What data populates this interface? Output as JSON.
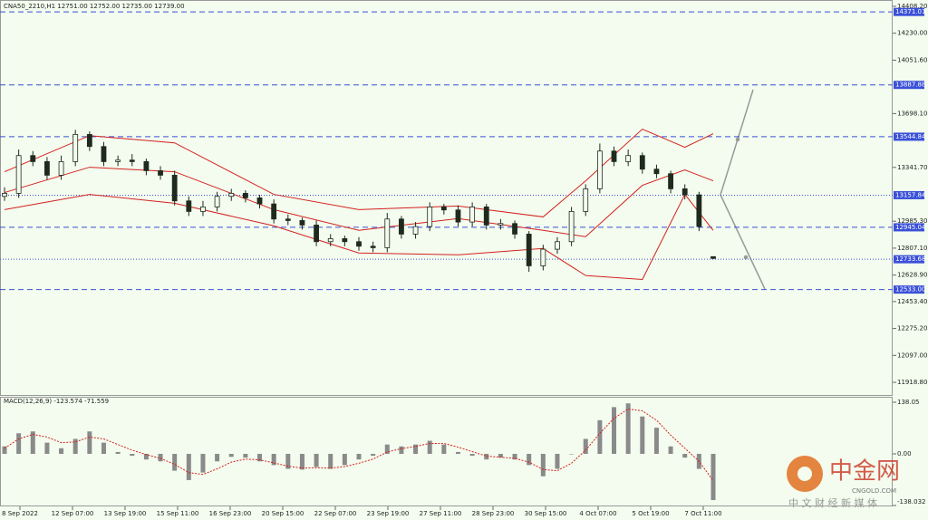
{
  "chart_data": [
    {
      "type": "candlestick",
      "title": "CNA50_2210,H1  12751.00 12752.00 12735.00 12739.00",
      "ylim": [
        11835,
        14450
      ],
      "yticks": [
        {
          "value": 14408.2,
          "label": "14408.20"
        },
        {
          "value": 14230,
          "label": "14230.00"
        },
        {
          "value": 14051.6,
          "label": "14051.60"
        },
        {
          "value": 13698.1,
          "label": "13698.10"
        },
        {
          "value": 13341.7,
          "label": "13341.70"
        },
        {
          "value": 12985.3,
          "label": "12985.30"
        },
        {
          "value": 12807.1,
          "label": "12807.10"
        },
        {
          "value": 12628.9,
          "label": "12628.90"
        },
        {
          "value": 12453.4,
          "label": "12453.40"
        },
        {
          "value": 12275.2,
          "label": "12275.20"
        },
        {
          "value": 12097,
          "label": "12097.00"
        },
        {
          "value": 11918.8,
          "label": "11918.80"
        }
      ],
      "open": [
        13150,
        13170,
        13420,
        13380,
        13290,
        13380,
        13560,
        13480,
        13380,
        13390,
        13380,
        13320,
        13290,
        13120,
        13050,
        13080,
        13150,
        13170,
        13140,
        13100,
        13000,
        12990,
        12960,
        12850,
        12870,
        12850,
        12820,
        12810,
        13000,
        12900,
        12950,
        13080,
        13060,
        12980,
        13080,
        12960,
        12970,
        12900,
        12690,
        12800,
        12850,
        13050,
        13200,
        13450,
        13380,
        13420,
        13330,
        13300,
        13200,
        13160,
        12751
      ],
      "high": [
        13210,
        13460,
        13450,
        13410,
        13420,
        13590,
        13580,
        13510,
        13420,
        13430,
        13400,
        13350,
        13320,
        13150,
        13120,
        13180,
        13200,
        13190,
        13160,
        13130,
        13030,
        13010,
        12990,
        12900,
        12890,
        12880,
        12850,
        13040,
        13020,
        12980,
        13110,
        13100,
        13090,
        13110,
        13100,
        13000,
        12990,
        12920,
        12830,
        12880,
        13080,
        13230,
        13500,
        13480,
        13460,
        13440,
        13360,
        13320,
        13230,
        13180,
        12752
      ],
      "low": [
        13120,
        13140,
        13350,
        13260,
        13260,
        13350,
        13450,
        13350,
        13350,
        13350,
        13290,
        13260,
        13090,
        13020,
        13020,
        13050,
        13120,
        13110,
        13070,
        12970,
        12960,
        12930,
        12820,
        12820,
        12820,
        12790,
        12780,
        12780,
        12870,
        12870,
        12920,
        13030,
        12950,
        12950,
        12930,
        12930,
        12870,
        12650,
        12660,
        12770,
        12820,
        13020,
        13170,
        13350,
        13350,
        13300,
        13270,
        13170,
        13130,
        12920,
        12735
      ],
      "close": [
        13170,
        13420,
        13380,
        13290,
        13380,
        13560,
        13480,
        13380,
        13390,
        13380,
        13320,
        13290,
        13120,
        13050,
        13080,
        13150,
        13170,
        13140,
        13100,
        13000,
        12990,
        12960,
        12850,
        12870,
        12850,
        12820,
        12810,
        13000,
        12900,
        12950,
        13080,
        13060,
        12980,
        13080,
        12960,
        12970,
        12900,
        12690,
        12800,
        12850,
        13050,
        13200,
        13450,
        13380,
        13420,
        13330,
        13300,
        13200,
        13160,
        12950,
        12739
      ],
      "candle_color": "#1e2a1e",
      "bands": [
        {
          "color": "#d42020",
          "x": [
            0,
            6,
            12,
            19,
            25,
            32,
            38,
            41,
            45,
            48,
            50
          ],
          "values": [
            13313,
            13552,
            13504,
            13163,
            13062,
            13086,
            13014,
            13253,
            13595,
            13475,
            13565
          ]
        },
        {
          "color": "#d42020",
          "x": [
            0,
            6,
            12,
            19,
            25,
            32,
            38,
            41,
            45,
            48,
            50
          ],
          "values": [
            13175,
            13343,
            13313,
            13062,
            12925,
            13003,
            12925,
            12883,
            13223,
            13325,
            13253
          ]
        },
        {
          "color": "#d42020",
          "x": [
            0,
            6,
            12,
            19,
            25,
            32,
            38,
            41,
            45,
            48,
            50
          ],
          "values": [
            13062,
            13163,
            13104,
            12955,
            12775,
            12763,
            12805,
            12626,
            12600,
            13163,
            12925
          ]
        }
      ],
      "levels": [
        {
          "value": 14371.01,
          "line": "dashed"
        },
        {
          "value": 13887.88,
          "line": "dashed"
        },
        {
          "value": 13544.84,
          "line": "dashed"
        },
        {
          "value": 13157.84,
          "line": "dotted"
        },
        {
          "value": 12945.04,
          "line": "dashed"
        },
        {
          "value": 12733.68,
          "line": "dotted"
        },
        {
          "value": 12533,
          "label": "12533.00",
          "line": "dashed"
        }
      ],
      "level_color": "#3a50d8"
    },
    {
      "type": "bar",
      "title": "MACD(12,26,9) -123.574 -71.559",
      "ylim": [
        -138.032,
        152.6
      ],
      "yticks": [
        {
          "value": 138.05,
          "label": "138.05"
        },
        {
          "value": 0,
          "label": "0.00"
        },
        -138.032
      ],
      "values": [
        20,
        55,
        60,
        30,
        15,
        40,
        60,
        30,
        5,
        -5,
        -15,
        -20,
        -45,
        -70,
        -50,
        -20,
        -8,
        -10,
        -20,
        -30,
        -40,
        -42,
        -35,
        -40,
        -30,
        -15,
        -5,
        25,
        20,
        25,
        35,
        25,
        5,
        -5,
        -15,
        -10,
        -15,
        -30,
        -60,
        -40,
        0,
        40,
        90,
        125,
        135,
        100,
        70,
        20,
        -10,
        -40,
        -123.574
      ],
      "signal": [
        15,
        40,
        52,
        45,
        30,
        32,
        45,
        40,
        25,
        10,
        -2,
        -12,
        -28,
        -50,
        -55,
        -40,
        -22,
        -14,
        -16,
        -24,
        -33,
        -38,
        -37,
        -38,
        -34,
        -25,
        -14,
        5,
        14,
        20,
        28,
        28,
        18,
        6,
        -6,
        -9,
        -12,
        -22,
        -42,
        -45,
        -25,
        10,
        55,
        95,
        120,
        115,
        90,
        50,
        15,
        -20,
        -71.559
      ],
      "color": "#8a8a8a",
      "signal_color": "#d42020",
      "x_labels": [
        "8 Sep 2022",
        "12 Sep 07:00",
        "13 Sep 19:00",
        "15 Sep 11:00",
        "16 Sep 23:00",
        "20 Sep 15:00",
        "22 Sep 07:00",
        "23 Sep 19:00",
        "27 Sep 11:00",
        "28 Sep 23:00",
        "30 Sep 15:00",
        "4 Oct 07:00",
        "5 Oct 19:00",
        "7 Oct 11:00"
      ]
    }
  ],
  "watermark": {
    "name": "中金网",
    "site": "CNGOLD.COM",
    "slogan": "中 文 财 经 新 媒 体"
  }
}
